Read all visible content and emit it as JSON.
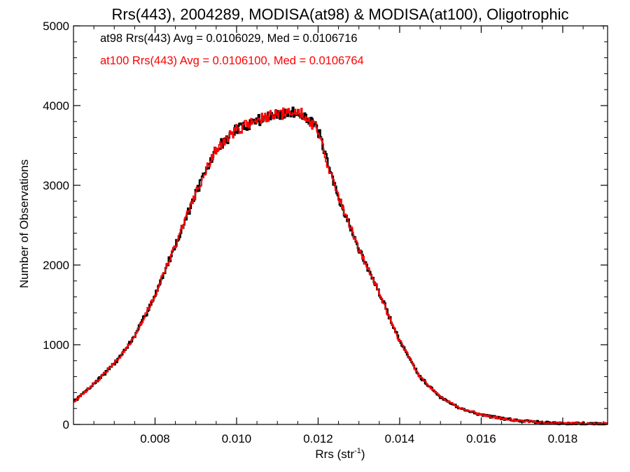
{
  "chart_data": {
    "type": "line",
    "step": true,
    "title": "Rrs(443), 2004289, MODISA(at98) & MODISA(at100), Oligotrophic",
    "xlabel_main": "Rrs (str",
    "xlabel_sup": "-1",
    "xlabel_tail": ")",
    "ylabel": "Number of Observations",
    "xlim": [
      0.006,
      0.0191
    ],
    "ylim": [
      0,
      5000
    ],
    "x_ticks": [
      0.008,
      0.01,
      0.012,
      0.014,
      0.016,
      0.018
    ],
    "x_tick_labels": [
      "0.008",
      "0.010",
      "0.012",
      "0.014",
      "0.016",
      "0.018"
    ],
    "y_ticks": [
      0,
      1000,
      2000,
      3000,
      4000,
      5000
    ],
    "y_tick_labels": [
      "0",
      "1000",
      "2000",
      "3000",
      "4000",
      "5000"
    ],
    "legend_position": "top-left",
    "annotations": [
      {
        "text": "at98 Rrs(443) Avg = 0.0106029, Med = 0.0106716",
        "color": "#000000"
      },
      {
        "text": "at100 Rrs(443) Avg = 0.0106100, Med = 0.0106764",
        "color": "#ff0000"
      }
    ],
    "curve_x": [
      0.006,
      0.0065,
      0.007,
      0.0075,
      0.008,
      0.0085,
      0.009,
      0.0095,
      0.01,
      0.0105,
      0.011,
      0.0113,
      0.0116,
      0.0118,
      0.012,
      0.0122,
      0.0125,
      0.013,
      0.0135,
      0.014,
      0.0145,
      0.015,
      0.0155,
      0.016,
      0.0165,
      0.017,
      0.0175,
      0.018,
      0.0185,
      0.0191
    ],
    "curve_y": [
      280,
      510,
      760,
      1100,
      1620,
      2250,
      2900,
      3450,
      3700,
      3820,
      3880,
      3910,
      3920,
      3800,
      3700,
      3320,
      2850,
      2200,
      1650,
      1050,
      600,
      340,
      200,
      120,
      75,
      45,
      25,
      15,
      10,
      5
    ],
    "series": [
      {
        "name": "at98",
        "color": "#000000",
        "seed": 7,
        "noise": 0.018
      },
      {
        "name": "at100",
        "color": "#ff0000",
        "seed": 13,
        "noise": 0.018
      }
    ]
  }
}
